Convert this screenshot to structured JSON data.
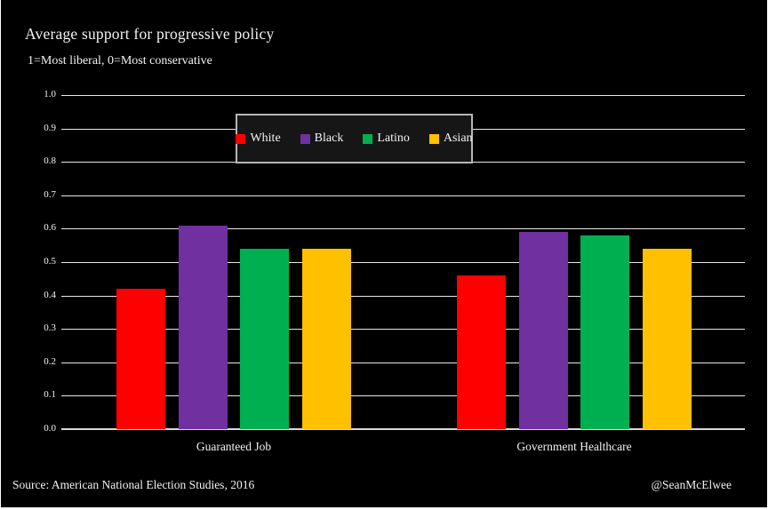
{
  "header": {
    "title": "Average support for progressive policy",
    "subtitle": "1=Most liberal, 0=Most conservative"
  },
  "footer": {
    "source": "Source: American National Election Studies, 2016",
    "credit": "@SeanMcElwee"
  },
  "colors": {
    "page_background": "#ffffff",
    "chart_background": "#000000",
    "text": "#f2f2f2",
    "gridline": "#e8e8e8",
    "axis_line": "#d9d9d9",
    "legend_background": "#161616",
    "legend_border": "#b7b7b7"
  },
  "chart_data": {
    "type": "bar",
    "title": "Average support for progressive policy",
    "subtitle": "1=Most liberal, 0=Most conservative",
    "xlabel": "",
    "ylabel": "",
    "categories": [
      "Guaranteed Job",
      "Government Healthcare"
    ],
    "series": [
      {
        "name": "White",
        "color": "#ff0000",
        "values": [
          0.42,
          0.46
        ]
      },
      {
        "name": "Black",
        "color": "#7030a0",
        "values": [
          0.61,
          0.59
        ]
      },
      {
        "name": "Latino",
        "color": "#00b050",
        "values": [
          0.54,
          0.58
        ]
      },
      {
        "name": "Asian",
        "color": "#ffc000",
        "values": [
          0.54,
          0.54
        ]
      }
    ],
    "ylim": [
      0,
      1
    ],
    "ytick_labels": [
      "0.0",
      "0.1",
      "0.2",
      "0.3",
      "0.4",
      "0.5",
      "0.6",
      "0.7",
      "0.8",
      "0.9",
      "1.0"
    ],
    "grid": true,
    "legend_position": "top-center-overlay"
  }
}
